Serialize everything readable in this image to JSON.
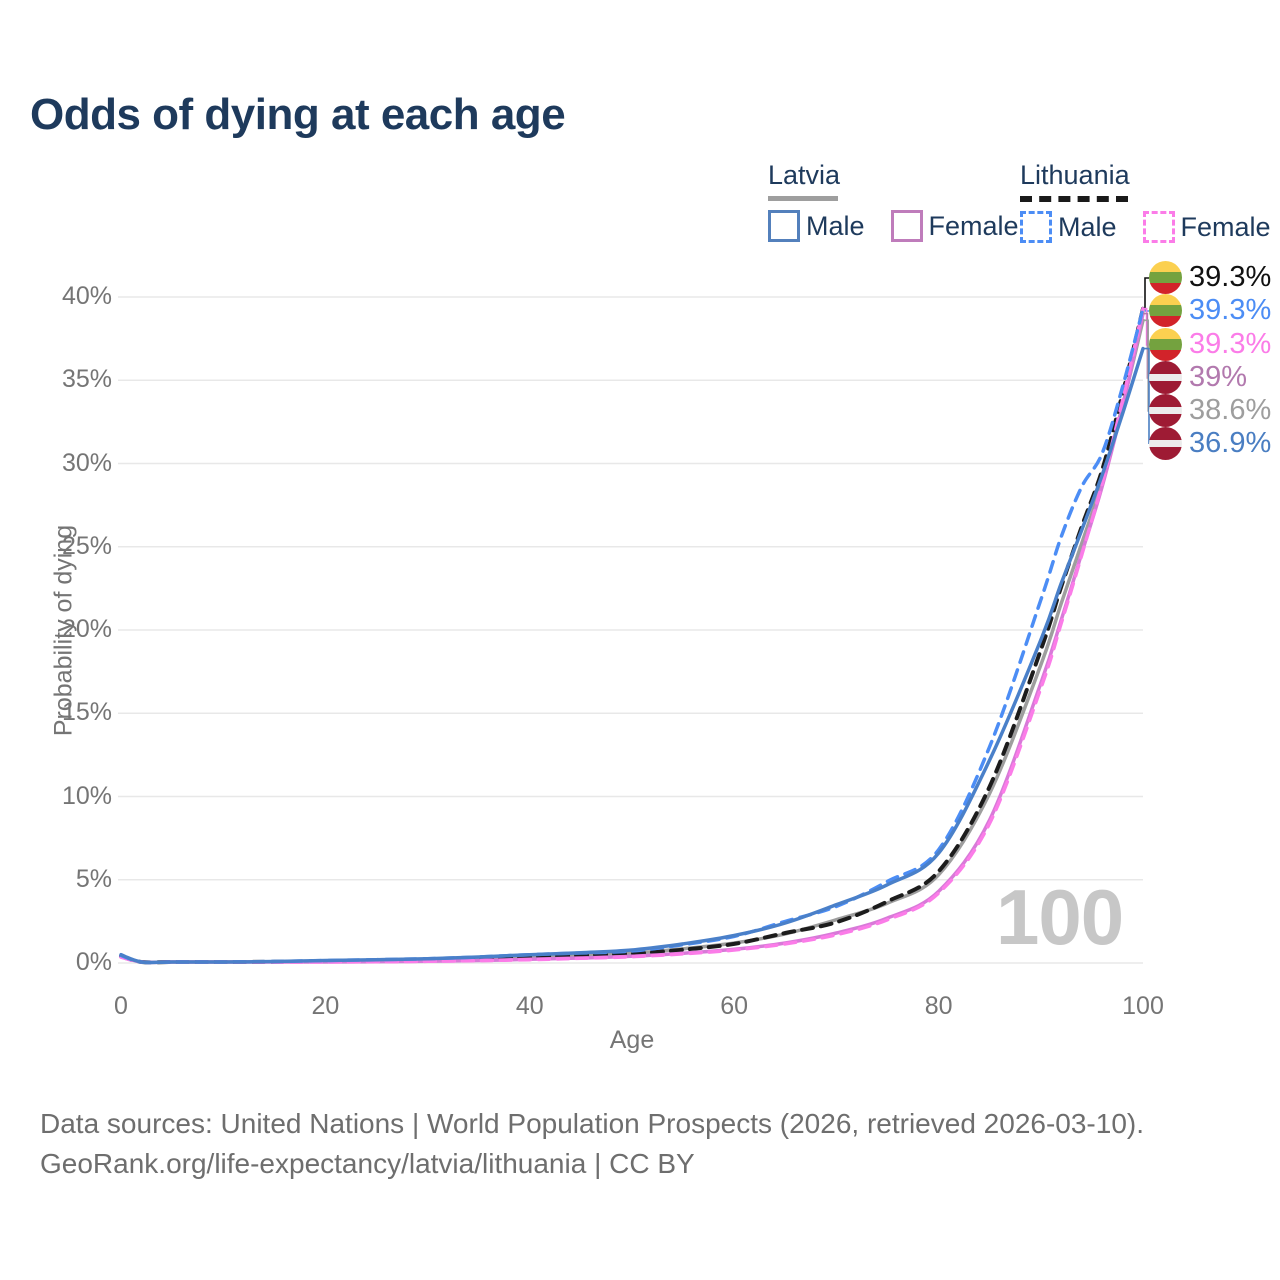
{
  "page": {
    "title": "Odds of dying at each age",
    "watermark_age": "100",
    "source_line1": "Data sources: United Nations | World Population Prospects (2026, retrieved 2026-03-10).",
    "source_line2": "GeoRank.org/life-expectancy/latvia/lithuania | CC BY"
  },
  "legend": {
    "groups": [
      {
        "title": "Latvia",
        "underline_style": "solid",
        "underline_color": "#9e9e9e",
        "items": [
          {
            "label": "Male",
            "color": "#5380bc",
            "dash": false
          },
          {
            "label": "Female",
            "color": "#bf7cbb",
            "dash": false
          }
        ]
      },
      {
        "title": "Lithuania",
        "underline_style": "dashed",
        "underline_color": "#1a1a1a",
        "items": [
          {
            "label": "Male",
            "color": "#4c8df5",
            "dash": true
          },
          {
            "label": "Female",
            "color": "#fb7ce8",
            "dash": true
          }
        ]
      }
    ]
  },
  "chart_data": {
    "type": "line",
    "title": "Odds of dying at each age",
    "xlabel": "Age",
    "ylabel": "Probability of dying",
    "xlim": [
      0,
      100
    ],
    "ylim": [
      0,
      40
    ],
    "grid": true,
    "x_ticks": [
      {
        "label": "0",
        "value": 0
      },
      {
        "label": "20",
        "value": 20
      },
      {
        "label": "40",
        "value": 40
      },
      {
        "label": "60",
        "value": 60
      },
      {
        "label": "80",
        "value": 80
      },
      {
        "label": "100",
        "value": 100
      }
    ],
    "y_ticks": [
      {
        "label": "0%",
        "value": 0
      },
      {
        "label": "5%",
        "value": 5
      },
      {
        "label": "10%",
        "value": 10
      },
      {
        "label": "15%",
        "value": 15
      },
      {
        "label": "20%",
        "value": 20
      },
      {
        "label": "25%",
        "value": 25
      },
      {
        "label": "30%",
        "value": 30
      },
      {
        "label": "35%",
        "value": 35
      },
      {
        "label": "40%",
        "value": 40
      }
    ],
    "ages": [
      0,
      2,
      5,
      10,
      15,
      20,
      25,
      30,
      35,
      40,
      45,
      50,
      55,
      60,
      65,
      70,
      75,
      80,
      85,
      90,
      92,
      94,
      96,
      98,
      100
    ],
    "series": [
      {
        "name": "Latvia both sexes",
        "country": "latvia",
        "sex": "both",
        "color": "#9e9e9e",
        "dash": false,
        "width": 3.5,
        "values": [
          0.45,
          0.05,
          0.03,
          0.03,
          0.07,
          0.1,
          0.14,
          0.18,
          0.26,
          0.36,
          0.46,
          0.58,
          0.85,
          1.2,
          1.75,
          2.6,
          3.6,
          5.3,
          10.2,
          17.9,
          21.6,
          25.2,
          28.9,
          33.5,
          38.6
        ]
      },
      {
        "name": "Lithuania both sexes",
        "country": "lithuania",
        "sex": "both",
        "color": "#1c1c1c",
        "dash": true,
        "width": 4,
        "values": [
          0.4,
          0.05,
          0.03,
          0.03,
          0.07,
          0.1,
          0.14,
          0.18,
          0.25,
          0.35,
          0.44,
          0.55,
          0.8,
          1.15,
          1.8,
          2.45,
          3.7,
          5.5,
          10.6,
          18.8,
          22.6,
          26.2,
          29.6,
          34.2,
          39.3
        ]
      },
      {
        "name": "Latvia female",
        "country": "latvia",
        "sex": "female",
        "color": "#d879d8",
        "dash": false,
        "width": 3.5,
        "values": [
          0.4,
          0.04,
          0.02,
          0.02,
          0.04,
          0.06,
          0.08,
          0.1,
          0.15,
          0.22,
          0.3,
          0.4,
          0.58,
          0.82,
          1.2,
          1.8,
          2.7,
          4.3,
          8.6,
          16.8,
          20.6,
          24.6,
          28.6,
          33.4,
          39.0
        ]
      },
      {
        "name": "Lithuania female",
        "country": "lithuania",
        "sex": "female",
        "color": "#fb7ce8",
        "dash": true,
        "width": 3.5,
        "values": [
          0.35,
          0.04,
          0.02,
          0.02,
          0.04,
          0.06,
          0.08,
          0.1,
          0.14,
          0.2,
          0.28,
          0.38,
          0.55,
          0.78,
          1.15,
          1.7,
          2.6,
          4.2,
          8.4,
          16.5,
          20.4,
          24.5,
          28.8,
          33.8,
          39.3
        ]
      },
      {
        "name": "Lithuania male",
        "country": "lithuania",
        "sex": "male",
        "color": "#4c8df5",
        "dash": true,
        "width": 3.5,
        "values": [
          0.45,
          0.06,
          0.04,
          0.04,
          0.09,
          0.15,
          0.2,
          0.26,
          0.36,
          0.5,
          0.6,
          0.72,
          1.1,
          1.6,
          2.5,
          3.4,
          4.9,
          6.8,
          13.0,
          21.8,
          25.6,
          28.6,
          30.6,
          34.6,
          39.3
        ]
      },
      {
        "name": "Latvia male",
        "country": "latvia",
        "sex": "male",
        "color": "#4a80c9",
        "dash": false,
        "width": 3.5,
        "values": [
          0.5,
          0.06,
          0.04,
          0.04,
          0.09,
          0.15,
          0.2,
          0.26,
          0.36,
          0.5,
          0.62,
          0.78,
          1.15,
          1.65,
          2.4,
          3.5,
          4.7,
          6.6,
          12.2,
          19.4,
          22.8,
          26.0,
          29.3,
          33.0,
          36.9
        ]
      }
    ],
    "end_labels": [
      {
        "flag": "lithuania",
        "text": "39.3%",
        "color": "#111111",
        "value": 39.3,
        "series": "Lithuania both sexes"
      },
      {
        "flag": "lithuania",
        "text": "39.3%",
        "color": "#4c8df5",
        "value": 39.3,
        "series": "Lithuania male"
      },
      {
        "flag": "lithuania",
        "text": "39.3%",
        "color": "#fb7ce8",
        "value": 39.3,
        "series": "Lithuania female"
      },
      {
        "flag": "latvia",
        "text": "39%",
        "color": "#b279ae",
        "value": 39.0,
        "series": "Latvia female"
      },
      {
        "flag": "latvia",
        "text": "38.6%",
        "color": "#9e9e9e",
        "value": 38.6,
        "series": "Latvia both sexes"
      },
      {
        "flag": "latvia",
        "text": "36.9%",
        "color": "#4a7ec2",
        "value": 36.9,
        "series": "Latvia male"
      }
    ],
    "legend_position": "top-right"
  }
}
